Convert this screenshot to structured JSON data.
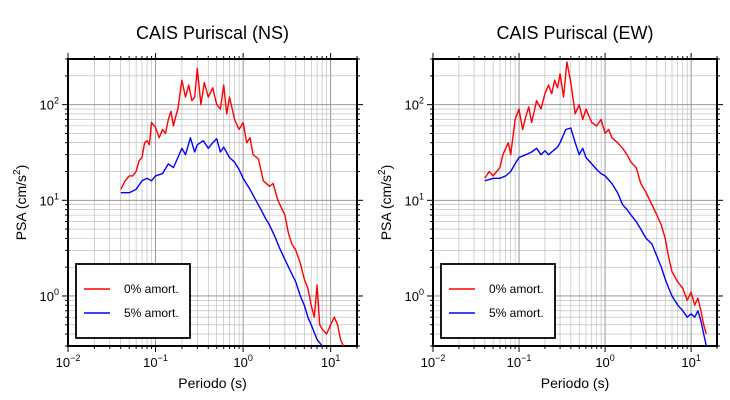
{
  "chart_data": [
    {
      "type": "line",
      "title": "CAIS Puriscal (NS)",
      "xlabel": "Periodo (s)",
      "ylabel_base": "PSA (cm/s",
      "ylabel_exp": "2",
      "ylabel_close": ")",
      "x_scale": "log",
      "y_scale": "log",
      "xlim": [
        0.01,
        20
      ],
      "ylim": [
        0.3,
        300
      ],
      "grid": true,
      "legend_position": "bottom-left",
      "x_ticks": [
        {
          "value": 0.01,
          "base": "10",
          "exp": "−2"
        },
        {
          "value": 0.1,
          "base": "10",
          "exp": "−1"
        },
        {
          "value": 1,
          "base": "10",
          "exp": "0"
        },
        {
          "value": 10,
          "base": "10",
          "exp": "1"
        }
      ],
      "y_ticks": [
        {
          "value": 1,
          "base": "10",
          "exp": "0"
        },
        {
          "value": 10,
          "base": "10",
          "exp": "1"
        },
        {
          "value": 100,
          "base": "10",
          "exp": "2"
        }
      ],
      "series": [
        {
          "name": "0% amort.",
          "color": "#ff0000",
          "x": [
            0.04,
            0.045,
            0.05,
            0.055,
            0.06,
            0.065,
            0.07,
            0.075,
            0.08,
            0.085,
            0.09,
            0.1,
            0.11,
            0.12,
            0.13,
            0.14,
            0.15,
            0.16,
            0.17,
            0.18,
            0.2,
            0.22,
            0.24,
            0.26,
            0.28,
            0.3,
            0.33,
            0.36,
            0.4,
            0.45,
            0.5,
            0.55,
            0.6,
            0.65,
            0.7,
            0.8,
            0.9,
            1.0,
            1.1,
            1.2,
            1.3,
            1.5,
            1.7,
            2.0,
            2.2,
            2.5,
            2.8,
            3.0,
            3.3,
            3.6,
            4.0,
            4.5,
            5.0,
            5.5,
            6.0,
            6.5,
            7.0,
            7.5,
            8.0,
            9.0,
            10,
            11,
            12,
            13,
            14
          ],
          "y": [
            13,
            16,
            18,
            18,
            20,
            26,
            28,
            40,
            42,
            38,
            65,
            58,
            45,
            55,
            50,
            70,
            85,
            60,
            75,
            90,
            180,
            120,
            160,
            110,
            120,
            240,
            100,
            170,
            120,
            150,
            100,
            90,
            160,
            80,
            120,
            70,
            55,
            65,
            40,
            45,
            30,
            27,
            16,
            14,
            15,
            10,
            8,
            7,
            4.5,
            3.5,
            3.0,
            2.2,
            1.5,
            1.2,
            0.8,
            0.6,
            1.3,
            0.5,
            0.45,
            0.4,
            0.5,
            0.6,
            0.5,
            0.35,
            0.3
          ]
        },
        {
          "name": "5% amort.",
          "color": "#0000ff",
          "x": [
            0.04,
            0.05,
            0.06,
            0.07,
            0.08,
            0.09,
            0.1,
            0.12,
            0.14,
            0.16,
            0.18,
            0.2,
            0.22,
            0.25,
            0.28,
            0.3,
            0.35,
            0.4,
            0.45,
            0.5,
            0.55,
            0.6,
            0.7,
            0.8,
            0.9,
            1.0,
            1.2,
            1.4,
            1.6,
            1.8,
            2.0,
            2.3,
            2.6,
            3.0,
            3.5,
            4.0,
            4.5,
            5.0,
            5.5,
            6.0,
            7.0,
            8.0
          ],
          "y": [
            12,
            12,
            13,
            16,
            17,
            16,
            18,
            19,
            24,
            22,
            28,
            35,
            30,
            45,
            32,
            38,
            42,
            35,
            40,
            44,
            32,
            36,
            28,
            25,
            21,
            17,
            13,
            10,
            8,
            6.5,
            5.5,
            4.2,
            3.2,
            2.4,
            1.8,
            1.4,
            1.0,
            0.8,
            0.6,
            0.5,
            0.35,
            0.3
          ]
        }
      ]
    },
    {
      "type": "line",
      "title": "CAIS Puriscal (EW)",
      "xlabel": "Periodo (s)",
      "ylabel_base": "PSA (cm/s",
      "ylabel_exp": "2",
      "ylabel_close": ")",
      "x_scale": "log",
      "y_scale": "log",
      "xlim": [
        0.01,
        20
      ],
      "ylim": [
        0.3,
        300
      ],
      "grid": true,
      "legend_position": "bottom-left",
      "x_ticks": [
        {
          "value": 0.01,
          "base": "10",
          "exp": "−2"
        },
        {
          "value": 0.1,
          "base": "10",
          "exp": "−1"
        },
        {
          "value": 1,
          "base": "10",
          "exp": "0"
        },
        {
          "value": 10,
          "base": "10",
          "exp": "1"
        }
      ],
      "y_ticks": [
        {
          "value": 1,
          "base": "10",
          "exp": "0"
        },
        {
          "value": 10,
          "base": "10",
          "exp": "1"
        },
        {
          "value": 100,
          "base": "10",
          "exp": "2"
        }
      ],
      "series": [
        {
          "name": "0% amort.",
          "color": "#ff0000",
          "x": [
            0.04,
            0.045,
            0.05,
            0.055,
            0.06,
            0.065,
            0.07,
            0.075,
            0.08,
            0.09,
            0.1,
            0.11,
            0.12,
            0.13,
            0.14,
            0.15,
            0.16,
            0.18,
            0.2,
            0.22,
            0.24,
            0.26,
            0.28,
            0.3,
            0.33,
            0.36,
            0.4,
            0.45,
            0.5,
            0.55,
            0.6,
            0.7,
            0.8,
            0.9,
            1.0,
            1.1,
            1.2,
            1.4,
            1.6,
            1.8,
            2.0,
            2.3,
            2.6,
            3.0,
            3.5,
            4.0,
            4.5,
            5.0,
            5.5,
            6.0,
            7.0,
            8.0,
            9.0,
            10,
            11,
            12,
            13,
            14,
            15
          ],
          "y": [
            17,
            20,
            18,
            20,
            22,
            30,
            35,
            40,
            30,
            70,
            90,
            55,
            75,
            95,
            65,
            85,
            110,
            90,
            130,
            160,
            130,
            180,
            150,
            210,
            120,
            280,
            170,
            80,
            100,
            70,
            90,
            65,
            60,
            70,
            50,
            55,
            45,
            40,
            35,
            30,
            25,
            22,
            15,
            12,
            9,
            7,
            5.5,
            4.0,
            2.5,
            1.8,
            1.4,
            1.2,
            0.9,
            1.1,
            0.8,
            0.95,
            0.7,
            0.5,
            0.4
          ]
        },
        {
          "name": "5% amort.",
          "color": "#0000ff",
          "x": [
            0.04,
            0.05,
            0.06,
            0.07,
            0.08,
            0.09,
            0.1,
            0.12,
            0.14,
            0.16,
            0.18,
            0.2,
            0.22,
            0.25,
            0.28,
            0.3,
            0.35,
            0.4,
            0.45,
            0.5,
            0.55,
            0.6,
            0.7,
            0.8,
            0.9,
            1.0,
            1.2,
            1.4,
            1.6,
            1.8,
            2.0,
            2.3,
            2.6,
            3.0,
            3.5,
            4.0,
            4.5,
            5.0,
            5.5,
            6.0,
            7.0,
            8.0,
            9.0,
            10,
            11,
            12,
            13,
            14,
            15
          ],
          "y": [
            16,
            17,
            17,
            18,
            20,
            24,
            28,
            30,
            32,
            35,
            30,
            33,
            30,
            33,
            36,
            40,
            55,
            57,
            40,
            30,
            35,
            28,
            24,
            21,
            19,
            18,
            15,
            12,
            9,
            8,
            7,
            6,
            5,
            4,
            3.5,
            2.6,
            2.0,
            1.5,
            1.2,
            1.0,
            0.8,
            0.7,
            0.6,
            0.65,
            0.6,
            0.7,
            0.55,
            0.4,
            0.3
          ]
        }
      ]
    }
  ]
}
